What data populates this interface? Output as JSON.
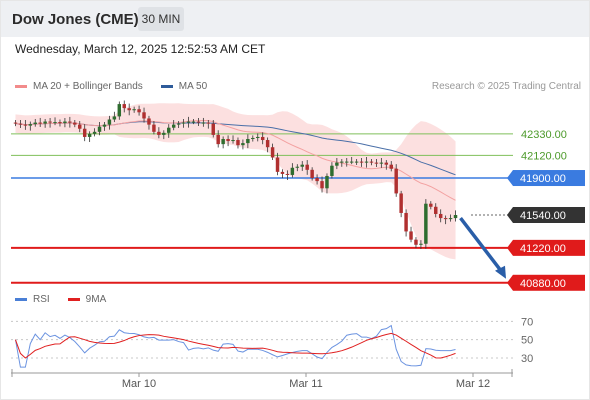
{
  "header": {
    "title": "Dow Jones (CME)",
    "timeframe": "30 MIN"
  },
  "datetime": "Wednesday, March 12, 2025 12:52:53 AM CET",
  "legend_top": [
    {
      "label": "MA 20 + Bollinger Bands",
      "color": "#f28b8b"
    },
    {
      "label": "MA 50",
      "color": "#2e5b9a"
    }
  ],
  "legend_bottom": [
    {
      "label": "RSI",
      "color": "#4a7fd6"
    },
    {
      "label": "9MA",
      "color": "#e02020"
    }
  ],
  "copyright": "Research © 2025 Trading Central",
  "colors": {
    "target_line": "#7fbf5a",
    "pivot_line": "#3a7be0",
    "support_line": "#e01b1b",
    "current_tag": "#333333",
    "candle_up": "#2f6d2f",
    "candle_down": "#b03030",
    "band_fill": "#fbdada",
    "ma50": "#4a6fa8",
    "arrow": "#2a5ea8"
  },
  "chart_data": {
    "type": "candlestick",
    "x_tick_labels": [
      "Mar 10",
      "Mar 11",
      "Mar 12"
    ],
    "y_range": [
      40800,
      42650
    ],
    "levels": [
      {
        "value": 42330,
        "label": "42330.00",
        "kind": "target"
      },
      {
        "value": 42120,
        "label": "42120.00",
        "kind": "target"
      },
      {
        "value": 41900,
        "label": "41900.00",
        "kind": "pivot"
      },
      {
        "value": 41540,
        "label": "41540.00",
        "kind": "current"
      },
      {
        "value": 41220,
        "label": "41220.00",
        "kind": "support"
      },
      {
        "value": 40880,
        "label": "40880.00",
        "kind": "support"
      }
    ],
    "close": [
      42430,
      42420,
      42410,
      42425,
      42440,
      42430,
      42450,
      42440,
      42445,
      42435,
      42450,
      42440,
      42420,
      42380,
      42300,
      42330,
      42350,
      42400,
      42420,
      42470,
      42500,
      42620,
      42580,
      42560,
      42570,
      42540,
      42480,
      42420,
      42350,
      42320,
      42340,
      42390,
      42420,
      42430,
      42440,
      42450,
      42450,
      42440,
      42440,
      42430,
      42320,
      42230,
      42280,
      42260,
      42270,
      42220,
      42240,
      42280,
      42290,
      42300,
      42270,
      42200,
      42100,
      41960,
      41940,
      41930,
      42000,
      42010,
      42030,
      41980,
      41900,
      41870,
      41800,
      41920,
      42020,
      42050,
      42060,
      42060,
      42060,
      42060,
      42050,
      42060,
      42050,
      42040,
      42050,
      42030,
      41990,
      41750,
      41560,
      41380,
      41300,
      41250,
      41260,
      41650,
      41620,
      41550,
      41510,
      41500,
      41510,
      41540
    ],
    "open": [
      42440,
      42430,
      42420,
      42410,
      42425,
      42440,
      42430,
      42450,
      42440,
      42445,
      42435,
      42450,
      42440,
      42420,
      42380,
      42300,
      42330,
      42350,
      42400,
      42420,
      42470,
      42500,
      42620,
      42580,
      42560,
      42570,
      42540,
      42480,
      42420,
      42350,
      42320,
      42340,
      42390,
      42420,
      42430,
      42440,
      42450,
      42450,
      42440,
      42440,
      42430,
      42320,
      42230,
      42280,
      42260,
      42270,
      42220,
      42240,
      42280,
      42290,
      42300,
      42270,
      42200,
      42100,
      41960,
      41940,
      41930,
      42000,
      42010,
      42030,
      41980,
      41900,
      41870,
      41800,
      41920,
      42020,
      42050,
      42060,
      42060,
      42060,
      42060,
      42050,
      42060,
      42050,
      42040,
      42050,
      42030,
      41990,
      41750,
      41560,
      41380,
      41300,
      41250,
      41260,
      41650,
      41620,
      41550,
      41510,
      41500,
      41510
    ],
    "forecast": [
      41510,
      40880
    ],
    "rsi_scale": [
      70,
      50,
      30
    ],
    "rsi_range": [
      18,
      78
    ]
  }
}
